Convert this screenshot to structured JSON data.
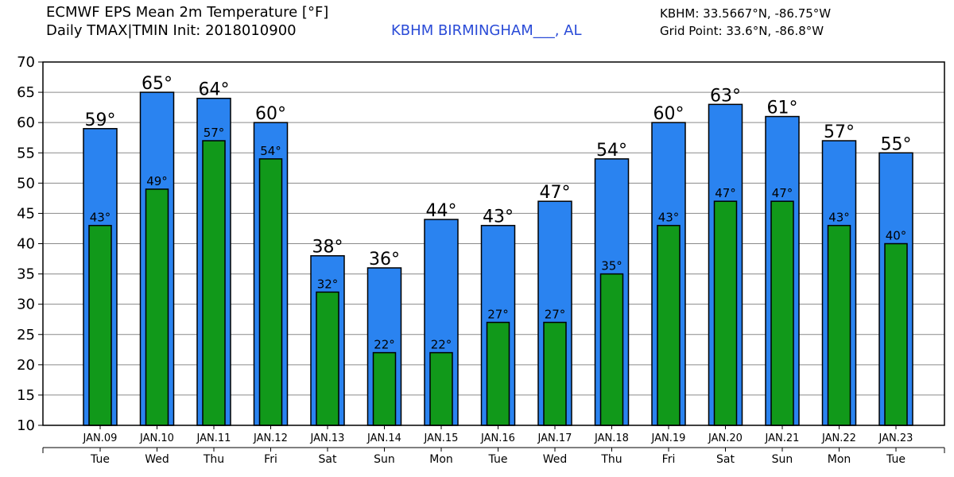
{
  "header": {
    "title_line1": "ECMWF EPS Mean 2m Temperature [°F]",
    "title_line2": "Daily TMAX|TMIN Init: 2018010900",
    "station": "KBHM BIRMINGHAM___, AL",
    "coords": "KBHM: 33.5667°N, -86.75°W",
    "grid_point": "Grid Point: 33.6°N, -86.8°W"
  },
  "chart_data": {
    "type": "bar",
    "title": "ECMWF EPS Mean 2m Temperature [°F]",
    "subtitle": "Daily TMAX|TMIN Init: 2018010900",
    "xlabel": "",
    "ylabel": "",
    "ylim": [
      10,
      70
    ],
    "yticks": [
      10,
      15,
      20,
      25,
      30,
      35,
      40,
      45,
      50,
      55,
      60,
      65,
      70
    ],
    "grid": "horizontal",
    "legend": "none",
    "categories": [
      "JAN.09",
      "JAN.10",
      "JAN.11",
      "JAN.12",
      "JAN.13",
      "JAN.14",
      "JAN.15",
      "JAN.16",
      "JAN.17",
      "JAN.18",
      "JAN.19",
      "JAN.20",
      "JAN.21",
      "JAN.22",
      "JAN.23"
    ],
    "weekdays": [
      "Tue",
      "Wed",
      "Thu",
      "Fri",
      "Sat",
      "Sun",
      "Mon",
      "Tue",
      "Wed",
      "Thu",
      "Fri",
      "Sat",
      "Sun",
      "Mon",
      "Tue"
    ],
    "series": [
      {
        "key": "tmax",
        "color": "#2a83f0",
        "values": [
          59,
          65,
          64,
          60,
          38,
          36,
          44,
          43,
          47,
          54,
          60,
          63,
          61,
          57,
          55
        ],
        "labels": [
          "59°",
          "65°",
          "64°",
          "60°",
          "38°",
          "36°",
          "44°",
          "43°",
          "47°",
          "54°",
          "60°",
          "63°",
          "61°",
          "57°",
          "55°"
        ]
      },
      {
        "key": "tmin",
        "color": "#11991a",
        "values": [
          43,
          49,
          57,
          54,
          32,
          22,
          22,
          27,
          27,
          35,
          43,
          47,
          47,
          43,
          40
        ],
        "labels": [
          "43°",
          "49°",
          "57°",
          "54°",
          "32°",
          "22°",
          "22°",
          "27°",
          "27°",
          "35°",
          "43°",
          "47°",
          "47°",
          "43°",
          "40°"
        ]
      }
    ]
  }
}
